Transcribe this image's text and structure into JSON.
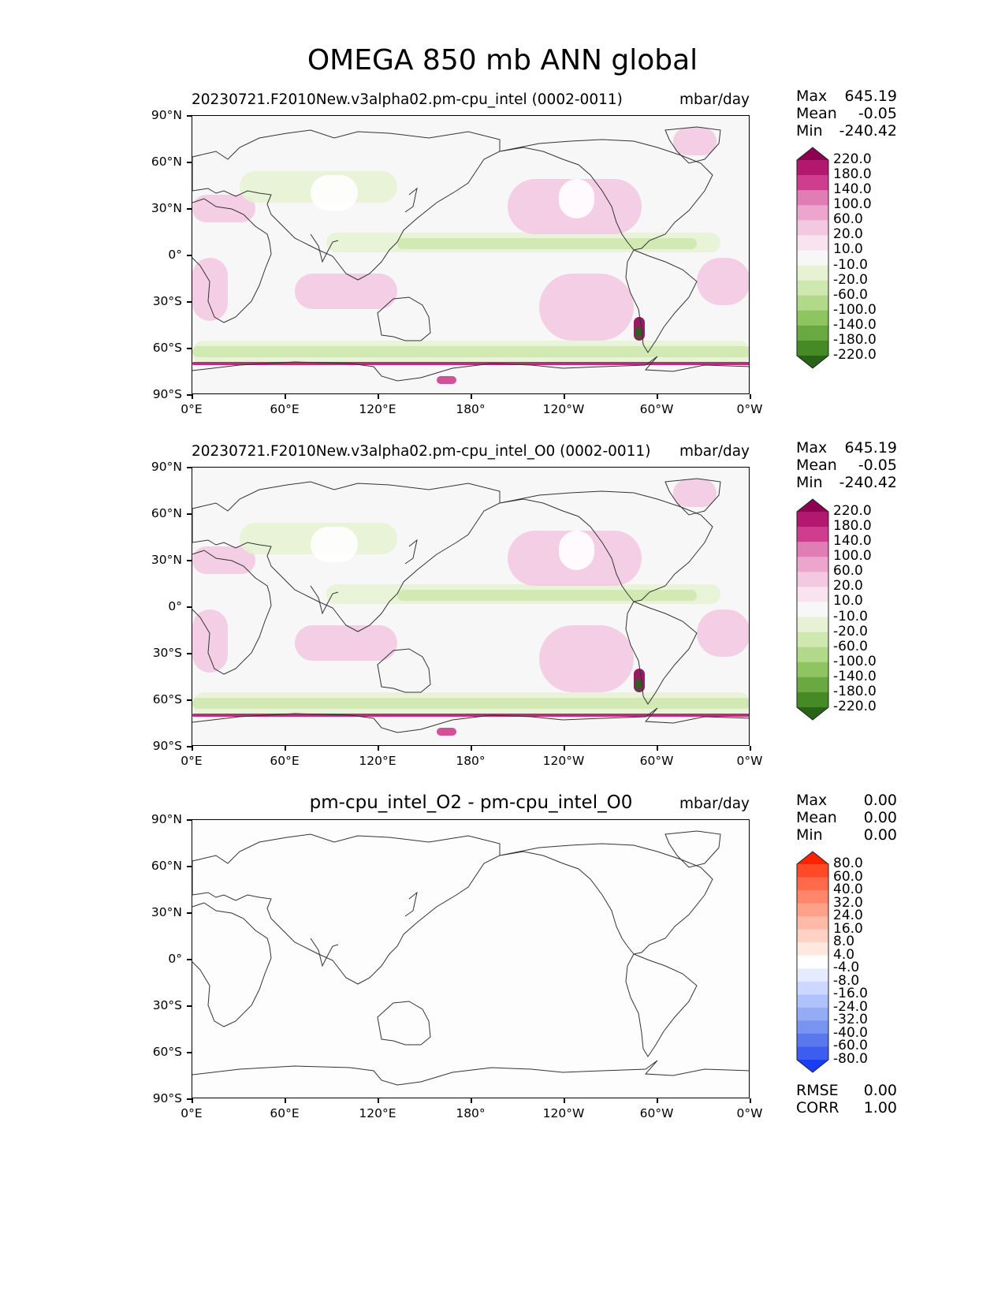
{
  "title": "OMEGA 850 mb ANN global",
  "ticks": {
    "y": [
      "90°N",
      "60°N",
      "30°N",
      "0°",
      "30°S",
      "60°S",
      "90°S"
    ],
    "x": [
      "0°E",
      "60°E",
      "120°E",
      "180°",
      "120°W",
      "60°W",
      "0°W"
    ]
  },
  "panels": [
    {
      "title": "20230721.F2010New.v3alpha02.pm-cpu_intel (0002-0011)",
      "units": "mbar/day",
      "stats": [
        {
          "label": "Max",
          "value": "645.19"
        },
        {
          "label": "Mean",
          "value": "-0.05"
        },
        {
          "label": "Min",
          "value": "-240.42"
        }
      ],
      "colorbar": {
        "labels": [
          "220.0",
          "180.0",
          "140.0",
          "100.0",
          "60.0",
          "20.0",
          "10.0",
          "-10.0",
          "-20.0",
          "-60.0",
          "-100.0",
          "-140.0",
          "-180.0",
          "-220.0"
        ],
        "colors": [
          "#8e0152",
          "#b3186f",
          "#cf3d8e",
          "#e07db4",
          "#eca6cd",
          "#f3c9e2",
          "#f8e3ef",
          "#f7f7f7",
          "#e6f2d3",
          "#cfe8b0",
          "#b1d989",
          "#8fc463",
          "#6aa841",
          "#468a26",
          "#276419"
        ]
      }
    },
    {
      "title": "20230721.F2010New.v3alpha02.pm-cpu_intel_O0 (0002-0011)",
      "units": "mbar/day",
      "stats": [
        {
          "label": "Max",
          "value": "645.19"
        },
        {
          "label": "Mean",
          "value": "-0.05"
        },
        {
          "label": "Min",
          "value": "-240.42"
        }
      ],
      "colorbar": {
        "labels": [
          "220.0",
          "180.0",
          "140.0",
          "100.0",
          "60.0",
          "20.0",
          "10.0",
          "-10.0",
          "-20.0",
          "-60.0",
          "-100.0",
          "-140.0",
          "-180.0",
          "-220.0"
        ],
        "colors": [
          "#8e0152",
          "#b3186f",
          "#cf3d8e",
          "#e07db4",
          "#eca6cd",
          "#f3c9e2",
          "#f8e3ef",
          "#f7f7f7",
          "#e6f2d3",
          "#cfe8b0",
          "#b1d989",
          "#8fc463",
          "#6aa841",
          "#468a26",
          "#276419"
        ]
      }
    },
    {
      "title": "pm-cpu_intel_O2 - pm-cpu_intel_O0",
      "units": "mbar/day",
      "stats": [
        {
          "label": "Max",
          "value": "0.00"
        },
        {
          "label": "Mean",
          "value": "0.00"
        },
        {
          "label": "Min",
          "value": "0.00"
        }
      ],
      "extra_stats": [
        {
          "label": "RMSE",
          "value": "0.00"
        },
        {
          "label": "CORR",
          "value": "1.00"
        }
      ],
      "colorbar": {
        "labels": [
          "80.0",
          "60.0",
          "40.0",
          "32.0",
          "24.0",
          "16.0",
          "8.0",
          "4.0",
          "-4.0",
          "-8.0",
          "-16.0",
          "-24.0",
          "-32.0",
          "-40.0",
          "-60.0",
          "-80.0"
        ],
        "colors": [
          "#ff2200",
          "#ff4a28",
          "#ff6a4a",
          "#ff866a",
          "#ffa088",
          "#ffb9a6",
          "#ffd2c4",
          "#ffe8e0",
          "#ffffff",
          "#e6ecff",
          "#ccd8ff",
          "#b0c2fb",
          "#94abf6",
          "#7893f2",
          "#5a78ee",
          "#3d5df0",
          "#1a3cf5"
        ]
      }
    }
  ]
}
